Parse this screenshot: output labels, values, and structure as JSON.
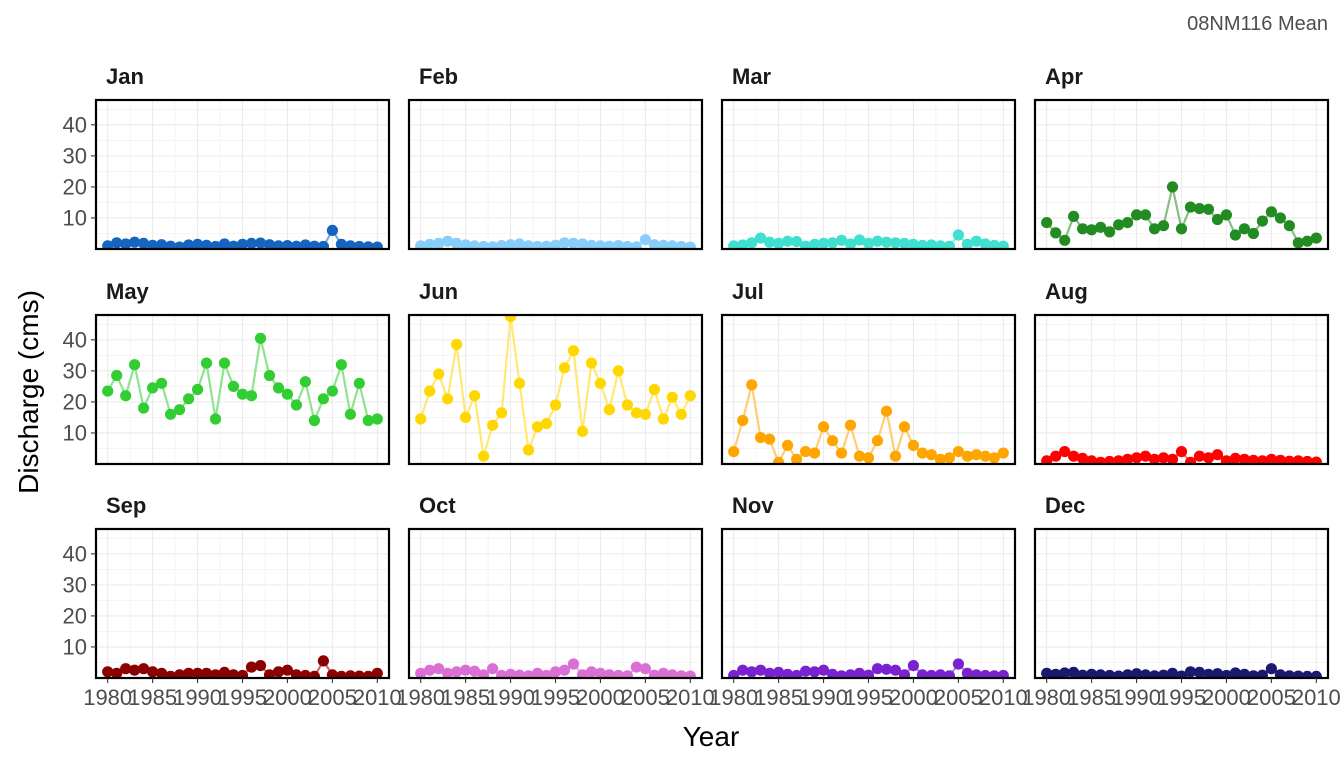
{
  "caption": "08NM116 Mean",
  "chart_data": {
    "type": "scatter",
    "facet_layout": "4 columns x 3 rows",
    "xlabel": "Year",
    "ylabel": "Discharge (cms)",
    "x_ticks": [
      "1980",
      "1985",
      "1990",
      "1995",
      "2000",
      "2005",
      "2010"
    ],
    "y_ticks": [
      "10",
      "20",
      "30",
      "40"
    ],
    "xlim": [
      1978.7,
      2011.3
    ],
    "ylim": [
      0,
      48
    ],
    "grid": true,
    "years": [
      1980,
      1981,
      1982,
      1983,
      1984,
      1985,
      1986,
      1987,
      1988,
      1989,
      1990,
      1991,
      1992,
      1993,
      1994,
      1995,
      1996,
      1997,
      1998,
      1999,
      2000,
      2001,
      2002,
      2003,
      2004,
      2005,
      2006,
      2007,
      2008,
      2009,
      2010
    ],
    "panels": [
      {
        "name": "Jan",
        "color": "#1565C0",
        "values": [
          1.0,
          2.0,
          1.6,
          2.2,
          1.8,
          1.2,
          1.4,
          0.9,
          0.6,
          1.3,
          1.5,
          1.2,
          0.8,
          1.6,
          0.9,
          1.5,
          1.8,
          1.9,
          1.4,
          1.0,
          1.1,
          0.9,
          1.3,
          0.9,
          0.8,
          6.0,
          1.5,
          1.0,
          0.8,
          0.7,
          0.6
        ]
      },
      {
        "name": "Feb",
        "color": "#87CEFA",
        "values": [
          1.0,
          1.5,
          1.8,
          2.5,
          1.8,
          1.3,
          1.0,
          0.8,
          0.7,
          1.1,
          1.4,
          1.6,
          1.0,
          0.8,
          0.9,
          1.2,
          2.0,
          1.8,
          1.6,
          1.2,
          1.0,
          0.9,
          1.1,
          0.8,
          0.7,
          3.0,
          1.4,
          1.2,
          1.0,
          0.8,
          0.6
        ]
      },
      {
        "name": "Mar",
        "color": "#40E0D0",
        "values": [
          1.0,
          1.3,
          2.0,
          3.5,
          2.2,
          1.8,
          2.5,
          2.4,
          0.9,
          1.5,
          1.8,
          2.0,
          2.8,
          1.6,
          2.9,
          1.8,
          2.5,
          2.2,
          2.0,
          1.8,
          1.5,
          1.2,
          1.3,
          1.0,
          0.9,
          4.5,
          1.5,
          2.5,
          1.6,
          1.2,
          0.9
        ]
      },
      {
        "name": "Apr",
        "color": "#228B22",
        "values": [
          8.5,
          5.2,
          2.8,
          10.5,
          6.5,
          6.2,
          7.0,
          5.5,
          7.8,
          8.5,
          11.0,
          11.0,
          6.5,
          7.5,
          20.0,
          6.5,
          13.5,
          13.0,
          12.8,
          9.5,
          11.0,
          4.5,
          6.5,
          5.0,
          9.0,
          12.0,
          10.0,
          7.5,
          2.0,
          2.5,
          3.5
        ]
      },
      {
        "name": "May",
        "color": "#32CD32",
        "values": [
          23.5,
          28.5,
          22.0,
          32.0,
          18.0,
          24.5,
          26.0,
          16.0,
          17.5,
          21.0,
          24.0,
          32.5,
          14.5,
          32.5,
          25.0,
          22.5,
          22.0,
          40.5,
          28.5,
          24.5,
          22.5,
          19.0,
          26.5,
          14.0,
          21.0,
          23.5,
          32.0,
          16.0,
          26.0,
          14.0,
          14.5
        ]
      },
      {
        "name": "Jun",
        "color": "#FFD700",
        "values": [
          14.5,
          23.5,
          29.0,
          21.0,
          38.5,
          15.0,
          22.0,
          2.5,
          12.5,
          16.5,
          47.5,
          26.0,
          4.5,
          12.0,
          13.0,
          19.0,
          31.0,
          36.5,
          10.5,
          32.5,
          26.0,
          17.5,
          30.0,
          19.0,
          16.5,
          16.0,
          24.0,
          14.5,
          21.5,
          16.0,
          22.0
        ]
      },
      {
        "name": "Jul",
        "color": "#FFA500",
        "values": [
          4.0,
          14.0,
          25.5,
          8.5,
          8.0,
          0.5,
          6.0,
          1.5,
          4.0,
          3.5,
          12.0,
          7.5,
          3.5,
          12.5,
          2.5,
          2.0,
          7.5,
          17.0,
          2.5,
          12.0,
          6.0,
          3.5,
          3.0,
          1.5,
          2.0,
          4.0,
          2.5,
          3.0,
          2.5,
          2.0,
          3.5
        ]
      },
      {
        "name": "Aug",
        "color": "#FF0000",
        "values": [
          1.0,
          2.5,
          4.0,
          2.5,
          1.8,
          1.0,
          0.5,
          0.8,
          1.0,
          1.5,
          2.0,
          2.5,
          1.5,
          2.0,
          1.5,
          4.0,
          0.5,
          2.5,
          2.0,
          3.0,
          1.0,
          1.8,
          1.5,
          1.2,
          1.0,
          1.5,
          1.2,
          0.9,
          1.0,
          0.8,
          0.6
        ]
      },
      {
        "name": "Sep",
        "color": "#8B0000",
        "values": [
          2.0,
          1.5,
          3.0,
          2.5,
          3.0,
          2.0,
          1.5,
          0.5,
          1.0,
          1.5,
          1.5,
          1.5,
          1.0,
          1.8,
          1.0,
          0.8,
          3.5,
          4.0,
          1.0,
          2.0,
          2.5,
          1.0,
          0.8,
          0.5,
          5.5,
          1.0,
          0.5,
          0.7,
          0.6,
          0.5,
          1.5
        ]
      },
      {
        "name": "Oct",
        "color": "#DA70D6",
        "values": [
          1.5,
          2.5,
          3.0,
          1.5,
          2.0,
          2.5,
          2.2,
          1.0,
          3.0,
          0.8,
          1.2,
          0.9,
          0.7,
          1.5,
          0.8,
          2.0,
          2.5,
          4.5,
          1.0,
          2.0,
          1.5,
          1.0,
          0.8,
          0.7,
          3.5,
          3.0,
          0.9,
          1.5,
          1.0,
          0.7,
          0.6
        ]
      },
      {
        "name": "Nov",
        "color": "#7B22D0",
        "values": [
          0.8,
          2.5,
          2.0,
          2.5,
          1.5,
          1.8,
          1.2,
          0.8,
          2.2,
          2.0,
          2.5,
          1.2,
          0.7,
          1.0,
          1.5,
          0.9,
          3.0,
          2.8,
          2.5,
          1.0,
          4.0,
          1.0,
          0.8,
          1.0,
          0.7,
          4.5,
          1.5,
          1.0,
          0.8,
          0.7,
          0.8
        ]
      },
      {
        "name": "Dec",
        "color": "#191970",
        "values": [
          1.5,
          1.2,
          1.6,
          1.8,
          0.9,
          1.2,
          1.0,
          0.8,
          0.6,
          1.0,
          1.4,
          1.0,
          0.7,
          0.9,
          1.5,
          0.6,
          2.0,
          1.8,
          1.2,
          1.4,
          0.8,
          1.6,
          1.2,
          0.7,
          0.9,
          3.0,
          1.0,
          0.7,
          0.6,
          0.5,
          0.5
        ]
      }
    ]
  }
}
